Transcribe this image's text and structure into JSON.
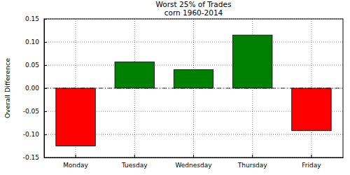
{
  "chart_data": {
    "type": "bar",
    "title": "Worst 25% of Trades",
    "subtitle": "corn 1960-2014",
    "y_label": "Overall Difference",
    "categories": [
      "Monday",
      "Tuesday",
      "Wednesday",
      "Thursday",
      "Friday"
    ],
    "values": [
      -0.125,
      0.057,
      0.04,
      0.115,
      -0.092
    ],
    "colors": [
      "#ff0000",
      "#008000",
      "#008000",
      "#008000",
      "#ff0000"
    ],
    "ylim": [
      -0.15,
      0.15
    ],
    "yticks": [
      {
        "value": -0.15,
        "label": "-0.15"
      },
      {
        "value": -0.1,
        "label": "-0.10"
      },
      {
        "value": -0.05,
        "label": "-0.05"
      },
      {
        "value": 0,
        "label": "0.00"
      },
      {
        "value": 0.05,
        "label": "0.05"
      },
      {
        "value": 0.1,
        "label": "0.10"
      },
      {
        "value": 0.15,
        "label": "0.15"
      }
    ],
    "grid": true
  }
}
